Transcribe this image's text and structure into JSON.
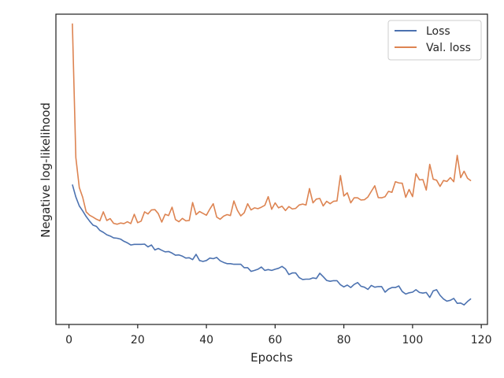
{
  "chart_data": {
    "type": "line",
    "title": "",
    "xlabel": "Epochs",
    "ylabel": "Negative log-likelihood",
    "xlim": [
      -3.8,
      121.8
    ],
    "ylim": [
      0.0,
      1.0
    ],
    "y_ticks_shown": false,
    "grid": false,
    "legend_position": "top-right",
    "x_ticks": [
      0,
      20,
      40,
      60,
      80,
      100,
      120
    ],
    "x_tick_labels": [
      "0",
      "20",
      "40",
      "60",
      "80",
      "100",
      "120"
    ],
    "series": [
      {
        "name": "Loss",
        "color": "#4c72b0",
        "x": [
          1,
          2,
          3,
          4,
          5,
          6,
          7,
          8,
          9,
          10,
          11,
          12,
          13,
          14,
          15,
          16,
          17,
          18,
          19,
          20,
          21,
          22,
          23,
          24,
          25,
          26,
          27,
          28,
          29,
          30,
          31,
          32,
          33,
          34,
          35,
          36,
          37,
          38,
          39,
          40,
          41,
          42,
          43,
          44,
          45,
          46,
          47,
          48,
          49,
          50,
          51,
          52,
          53,
          54,
          55,
          56,
          57,
          58,
          59,
          60,
          61,
          62,
          63,
          64,
          65,
          66,
          67,
          68,
          69,
          70,
          71,
          72,
          73,
          74,
          75,
          76,
          77,
          78,
          79,
          80,
          81,
          82,
          83,
          84,
          85,
          86,
          87,
          88,
          89,
          90,
          91,
          92,
          93,
          94,
          95,
          96,
          97,
          98,
          99,
          100,
          101,
          102,
          103,
          104,
          105,
          106,
          107,
          108,
          109,
          110,
          111,
          112,
          113,
          114,
          115,
          116,
          117
        ],
        "values": [
          0.451,
          0.411,
          0.382,
          0.366,
          0.348,
          0.333,
          0.32,
          0.316,
          0.303,
          0.297,
          0.289,
          0.285,
          0.279,
          0.278,
          0.275,
          0.268,
          0.263,
          0.256,
          0.258,
          0.258,
          0.258,
          0.259,
          0.25,
          0.256,
          0.24,
          0.245,
          0.239,
          0.234,
          0.235,
          0.23,
          0.223,
          0.224,
          0.22,
          0.214,
          0.215,
          0.209,
          0.226,
          0.206,
          0.203,
          0.206,
          0.214,
          0.212,
          0.216,
          0.205,
          0.2,
          0.196,
          0.196,
          0.194,
          0.194,
          0.194,
          0.183,
          0.183,
          0.171,
          0.174,
          0.178,
          0.185,
          0.174,
          0.177,
          0.174,
          0.178,
          0.181,
          0.187,
          0.179,
          0.161,
          0.166,
          0.166,
          0.151,
          0.145,
          0.146,
          0.146,
          0.15,
          0.148,
          0.165,
          0.154,
          0.142,
          0.139,
          0.141,
          0.141,
          0.128,
          0.121,
          0.127,
          0.119,
          0.129,
          0.135,
          0.123,
          0.12,
          0.113,
          0.126,
          0.12,
          0.122,
          0.122,
          0.104,
          0.114,
          0.119,
          0.119,
          0.124,
          0.106,
          0.098,
          0.102,
          0.104,
          0.112,
          0.103,
          0.101,
          0.103,
          0.087,
          0.108,
          0.112,
          0.094,
          0.082,
          0.075,
          0.078,
          0.084,
          0.068,
          0.069,
          0.063,
          0.074,
          0.083
        ]
      },
      {
        "name": "Val. loss",
        "color": "#dd8452",
        "x": [
          1,
          2,
          3,
          4,
          5,
          6,
          7,
          8,
          9,
          10,
          11,
          12,
          13,
          14,
          15,
          16,
          17,
          18,
          19,
          20,
          21,
          22,
          23,
          24,
          25,
          26,
          27,
          28,
          29,
          30,
          31,
          32,
          33,
          34,
          35,
          36,
          37,
          38,
          39,
          40,
          41,
          42,
          43,
          44,
          45,
          46,
          47,
          48,
          49,
          50,
          51,
          52,
          53,
          54,
          55,
          56,
          57,
          58,
          59,
          60,
          61,
          62,
          63,
          64,
          65,
          66,
          67,
          68,
          69,
          70,
          71,
          72,
          73,
          74,
          75,
          76,
          77,
          78,
          79,
          80,
          81,
          82,
          83,
          84,
          85,
          86,
          87,
          88,
          89,
          90,
          91,
          92,
          93,
          94,
          95,
          96,
          97,
          98,
          99,
          100,
          101,
          102,
          103,
          104,
          105,
          106,
          107,
          108,
          109,
          110,
          111,
          112,
          113,
          114,
          115,
          116,
          117
        ],
        "values": [
          0.97,
          0.538,
          0.441,
          0.41,
          0.363,
          0.352,
          0.346,
          0.339,
          0.334,
          0.363,
          0.335,
          0.341,
          0.326,
          0.323,
          0.327,
          0.325,
          0.331,
          0.325,
          0.355,
          0.328,
          0.333,
          0.363,
          0.356,
          0.369,
          0.37,
          0.357,
          0.33,
          0.355,
          0.351,
          0.378,
          0.338,
          0.331,
          0.342,
          0.334,
          0.335,
          0.393,
          0.354,
          0.364,
          0.358,
          0.352,
          0.372,
          0.389,
          0.346,
          0.339,
          0.349,
          0.354,
          0.351,
          0.398,
          0.368,
          0.35,
          0.36,
          0.389,
          0.369,
          0.376,
          0.373,
          0.378,
          0.384,
          0.412,
          0.371,
          0.392,
          0.376,
          0.381,
          0.367,
          0.38,
          0.372,
          0.374,
          0.385,
          0.388,
          0.385,
          0.438,
          0.392,
          0.404,
          0.406,
          0.382,
          0.397,
          0.389,
          0.397,
          0.398,
          0.48,
          0.414,
          0.424,
          0.392,
          0.408,
          0.408,
          0.401,
          0.402,
          0.411,
          0.429,
          0.447,
          0.409,
          0.408,
          0.412,
          0.429,
          0.426,
          0.46,
          0.456,
          0.455,
          0.41,
          0.435,
          0.412,
          0.486,
          0.466,
          0.467,
          0.433,
          0.516,
          0.468,
          0.465,
          0.445,
          0.464,
          0.461,
          0.473,
          0.46,
          0.545,
          0.473,
          0.494,
          0.471,
          0.463
        ]
      }
    ]
  }
}
